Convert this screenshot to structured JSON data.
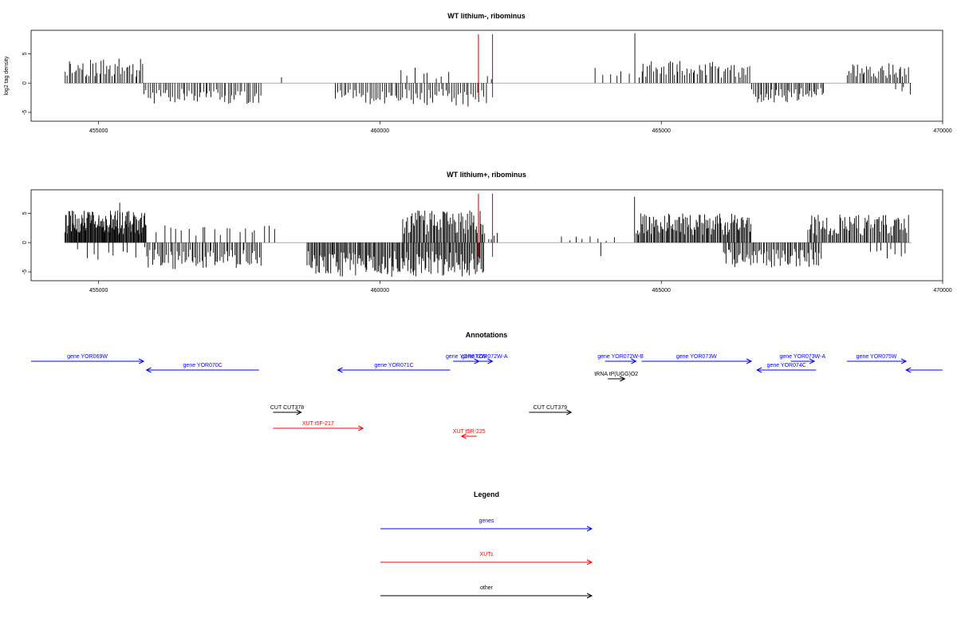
{
  "chart_data": [
    {
      "type": "bar",
      "title": "WT lithium-, ribominus",
      "ylabel": "log2 tag density",
      "xlim": [
        453800,
        470000
      ],
      "ylim": [
        -6.5,
        9
      ],
      "xticks": [
        455000,
        460000,
        465000,
        470000
      ],
      "yticks": [
        -5,
        0,
        5
      ],
      "marker_color": "#ff0000",
      "markers": [
        461750,
        462000
      ],
      "segments": [
        {
          "x0": 454400,
          "x1": 455800,
          "sign": 1,
          "max": 4.2,
          "n": 44,
          "seed": 11
        },
        {
          "x0": 455800,
          "x1": 457900,
          "sign": -1,
          "max": 3.6,
          "n": 58,
          "seed": 12
        },
        {
          "x0": 458200,
          "x1": 458300,
          "sign": 1,
          "max": 1.0,
          "n": 1,
          "seed": 13
        },
        {
          "x0": 459200,
          "x1": 461900,
          "sign": -1,
          "max": 4.0,
          "n": 72,
          "seed": 14
        },
        {
          "x0": 460350,
          "x1": 461300,
          "sign": 1,
          "max": 3.0,
          "n": 8,
          "seed": 15
        },
        {
          "x0": 461900,
          "x1": 462000,
          "sign": 1,
          "max": 1.5,
          "n": 2,
          "seed": 16
        },
        {
          "x0": 463800,
          "x1": 464500,
          "sign": 1,
          "max": 3.0,
          "n": 6,
          "seed": 17
        },
        {
          "x0": 464500,
          "x1": 464560,
          "sign": 1,
          "max": 8.5,
          "n": 1,
          "seed": 18
        },
        {
          "x0": 464600,
          "x1": 466600,
          "sign": 1,
          "max": 3.8,
          "n": 55,
          "seed": 19
        },
        {
          "x0": 466600,
          "x1": 467900,
          "sign": -1,
          "max": 3.4,
          "n": 44,
          "seed": 20
        },
        {
          "x0": 468300,
          "x1": 469400,
          "sign": 1,
          "max": 3.5,
          "n": 36,
          "seed": 21
        },
        {
          "x0": 469150,
          "x1": 469450,
          "sign": -1,
          "max": 2.3,
          "n": 4,
          "seed": 22
        }
      ]
    },
    {
      "type": "bar",
      "title": "WT lithium+, ribominus",
      "ylabel": "",
      "xlim": [
        453800,
        470000
      ],
      "ylim": [
        -6.5,
        9
      ],
      "xticks": [
        455000,
        460000,
        465000,
        470000
      ],
      "yticks": [
        -5,
        0,
        5
      ],
      "marker_color": "#ff0000",
      "markers": [
        461750,
        462000
      ],
      "segments": [
        {
          "x0": 454400,
          "x1": 455850,
          "sign": 1,
          "max": 5.5,
          "n": 120,
          "seed": 31
        },
        {
          "x0": 454600,
          "x1": 455850,
          "sign": -1,
          "max": 3.0,
          "n": 10,
          "seed": 32
        },
        {
          "x0": 455350,
          "x1": 455400,
          "sign": 1,
          "max": 6.8,
          "n": 1,
          "seed": 33
        },
        {
          "x0": 455850,
          "x1": 457900,
          "sign": -1,
          "max": 4.5,
          "n": 70,
          "seed": 34
        },
        {
          "x0": 456000,
          "x1": 458200,
          "sign": 1,
          "max": 3.0,
          "n": 20,
          "seed": 35
        },
        {
          "x0": 458700,
          "x1": 461850,
          "sign": -1,
          "max": 5.9,
          "n": 160,
          "seed": 36
        },
        {
          "x0": 460400,
          "x1": 461850,
          "sign": 1,
          "max": 5.5,
          "n": 70,
          "seed": 37
        },
        {
          "x0": 461850,
          "x1": 462100,
          "sign": 1,
          "max": 2.0,
          "n": 5,
          "seed": 38
        },
        {
          "x0": 463200,
          "x1": 464200,
          "sign": 1,
          "max": 1.2,
          "n": 8,
          "seed": 39
        },
        {
          "x0": 463900,
          "x1": 463950,
          "sign": -1,
          "max": 2.3,
          "n": 1,
          "seed": 40
        },
        {
          "x0": 464500,
          "x1": 464550,
          "sign": 1,
          "max": 7.8,
          "n": 1,
          "seed": 41
        },
        {
          "x0": 464550,
          "x1": 466600,
          "sign": 1,
          "max": 5.0,
          "n": 110,
          "seed": 42
        },
        {
          "x0": 466100,
          "x1": 467850,
          "sign": -1,
          "max": 4.3,
          "n": 70,
          "seed": 43
        },
        {
          "x0": 467600,
          "x1": 469400,
          "sign": 1,
          "max": 4.8,
          "n": 80,
          "seed": 44
        },
        {
          "x0": 468700,
          "x1": 469400,
          "sign": -1,
          "max": 3.0,
          "n": 8,
          "seed": 45
        }
      ]
    }
  ],
  "annotations": {
    "title": "Annotations",
    "colors": {
      "gene": "#0000ff",
      "xut": "#ff0000",
      "other": "#000000"
    },
    "features": [
      {
        "label": "gene YOR069W",
        "x0": 453800,
        "x1": 455800,
        "row": 0,
        "dir": "+",
        "kind": "gene"
      },
      {
        "label": "gene YOR070C",
        "x0": 455850,
        "x1": 457850,
        "row": 1,
        "dir": "-",
        "kind": "gene"
      },
      {
        "label": "gene YOR071C",
        "x0": 459250,
        "x1": 461250,
        "row": 1,
        "dir": "-",
        "kind": "gene"
      },
      {
        "label": "gene YOR072W",
        "x0": 461300,
        "x1": 461760,
        "row": 0,
        "dir": "+",
        "kind": "gene"
      },
      {
        "label": "gene YOR072W-A",
        "x0": 461720,
        "x1": 462000,
        "row": 0,
        "dir": "+",
        "kind": "gene"
      },
      {
        "label": "gene YOR072W-B",
        "x0": 464000,
        "x1": 464550,
        "row": 0,
        "dir": "+",
        "kind": "gene"
      },
      {
        "label": "gene YOR073W",
        "x0": 464650,
        "x1": 466600,
        "row": 0,
        "dir": "+",
        "kind": "gene"
      },
      {
        "label": "gene YOR073W-A",
        "x0": 467300,
        "x1": 467720,
        "row": 0,
        "dir": "+",
        "kind": "gene"
      },
      {
        "label": "gene YOR074C",
        "x0": 466700,
        "x1": 467750,
        "row": 1,
        "dir": "-",
        "kind": "gene"
      },
      {
        "label": "gene YOR075W",
        "x0": 468300,
        "x1": 469350,
        "row": 0,
        "dir": "+",
        "kind": "gene"
      },
      {
        "label": "",
        "x0": 469350,
        "x1": 470000,
        "row": 1,
        "dir": "-",
        "kind": "gene"
      },
      {
        "label": "tRNA tP(UGG)O2",
        "x0": 464050,
        "x1": 464350,
        "row": 2,
        "dir": "+",
        "kind": "other"
      },
      {
        "label": "CUT CUT378",
        "x0": 458100,
        "x1": 458600,
        "row": 3,
        "dir": "+",
        "kind": "other"
      },
      {
        "label": "CUT CUT379",
        "x0": 462650,
        "x1": 463400,
        "row": 3,
        "dir": "+",
        "kind": "other"
      },
      {
        "label": "XUT t5F-217",
        "x0": 458100,
        "x1": 459700,
        "row": 4,
        "dir": "+",
        "kind": "xut"
      },
      {
        "label": "XUT t5R-225",
        "x0": 461450,
        "x1": 461720,
        "row": 5,
        "dir": "-",
        "kind": "xut"
      }
    ]
  },
  "legend": {
    "title": "Legend",
    "items": [
      {
        "label": "genes",
        "color": "#0000ff"
      },
      {
        "label": "XUTs",
        "color": "#ff0000"
      },
      {
        "label": "other",
        "color": "#000000"
      }
    ]
  }
}
